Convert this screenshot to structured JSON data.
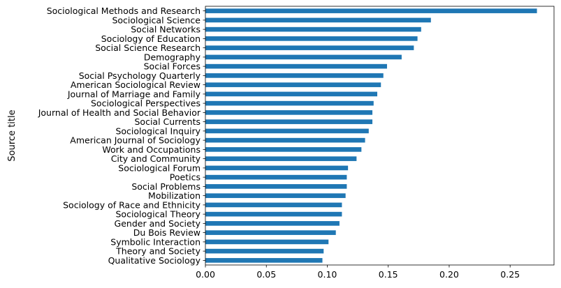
{
  "chart_data": {
    "type": "bar",
    "orientation": "horizontal",
    "title": "",
    "xlabel": "",
    "ylabel": "Source title",
    "xlim": [
      0,
      0.286
    ],
    "xticks": [
      0.0,
      0.05,
      0.1,
      0.15,
      0.2,
      0.25
    ],
    "xtick_labels": [
      "0.00",
      "0.05",
      "0.10",
      "0.15",
      "0.20",
      "0.25"
    ],
    "grid": false,
    "legend": "none",
    "bar_color": "#1f77b4",
    "categories": [
      "Sociological Methods and Research",
      "Sociological Science",
      "Social Networks",
      "Sociology of Education",
      "Social Science Research",
      "Demography",
      "Social Forces",
      "Social Psychology Quarterly",
      "American Sociological Review",
      "Journal of Marriage and Family",
      "Sociological Perspectives",
      "Journal of Health and Social Behavior",
      "Social Currents",
      "Sociological Inquiry",
      "American Journal of Sociology",
      "Work and Occupations",
      "City and Community",
      "Sociological Forum",
      "Poetics",
      "Social Problems",
      "Mobilization",
      "Sociology of Race and Ethnicity",
      "Sociological Theory",
      "Gender and Society",
      "Du Bois Review",
      "Symbolic Interaction",
      "Theory and Society",
      "Qualitative Sociology"
    ],
    "values": [
      0.272,
      0.185,
      0.177,
      0.174,
      0.171,
      0.161,
      0.149,
      0.146,
      0.144,
      0.141,
      0.138,
      0.137,
      0.137,
      0.134,
      0.131,
      0.128,
      0.124,
      0.117,
      0.116,
      0.116,
      0.115,
      0.112,
      0.112,
      0.11,
      0.107,
      0.101,
      0.097,
      0.096
    ]
  }
}
